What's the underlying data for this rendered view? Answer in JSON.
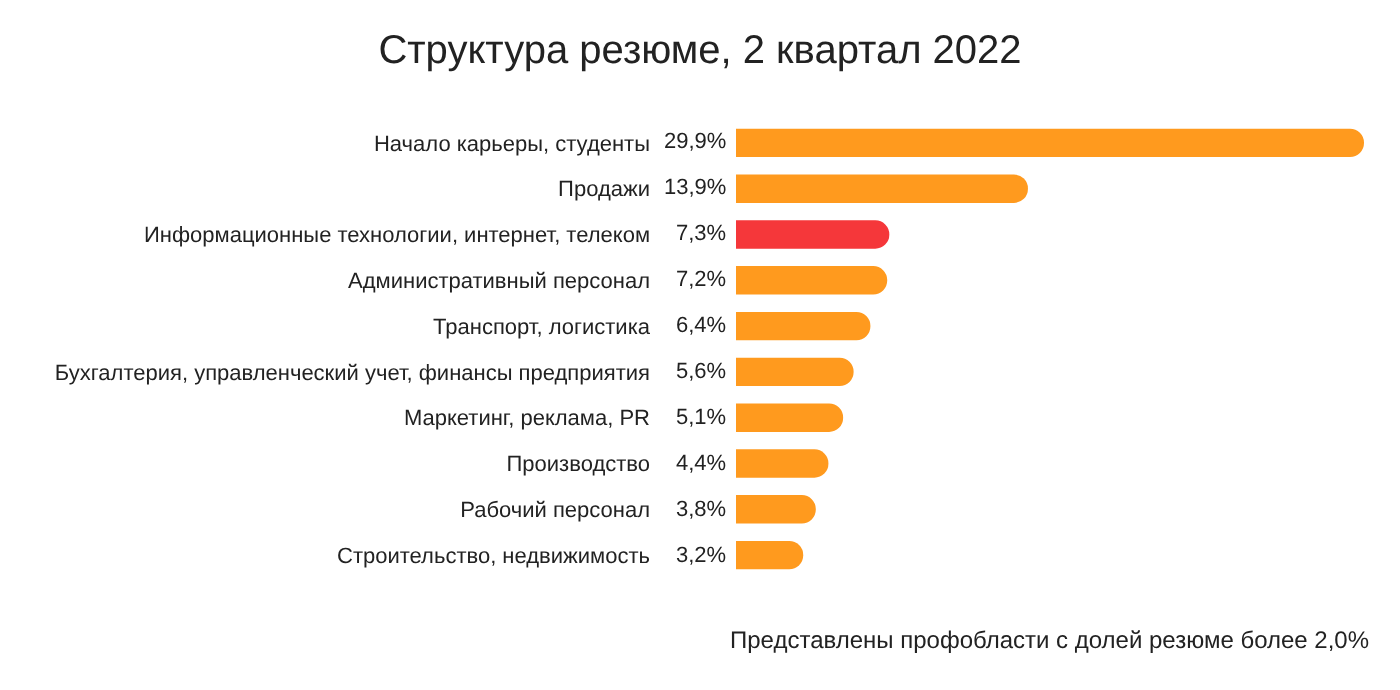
{
  "chart_data": {
    "type": "bar",
    "orientation": "horizontal",
    "title": "Структура резюме, 2 квартал 2022",
    "categories": [
      "Начало карьеры, студенты",
      "Продажи",
      "Информационные технологии, интернет, телеком",
      "Административный персонал",
      "Транспорт, логистика",
      "Бухгалтерия, управленческий учет, финансы предприятия",
      "Маркетинг, реклама, PR",
      "Производство",
      "Рабочий персонал",
      "Строительство, недвижимость"
    ],
    "values": [
      29.9,
      13.9,
      7.3,
      7.2,
      6.4,
      5.6,
      5.1,
      4.4,
      3.8,
      3.2
    ],
    "value_labels": [
      "29,9%",
      "13,9%",
      "7,3%",
      "7,2%",
      "6,4%",
      "5,6%",
      "5,1%",
      "4,4%",
      "3,8%",
      "3,2%"
    ],
    "colors": [
      "#ff9a1e",
      "#ff9a1e",
      "#f5373a",
      "#ff9a1e",
      "#ff9a1e",
      "#ff9a1e",
      "#ff9a1e",
      "#ff9a1e",
      "#ff9a1e",
      "#ff9a1e"
    ],
    "annotations": [
      "Представлены профобласти с долей резюме более 2,0%"
    ],
    "legend": false
  }
}
